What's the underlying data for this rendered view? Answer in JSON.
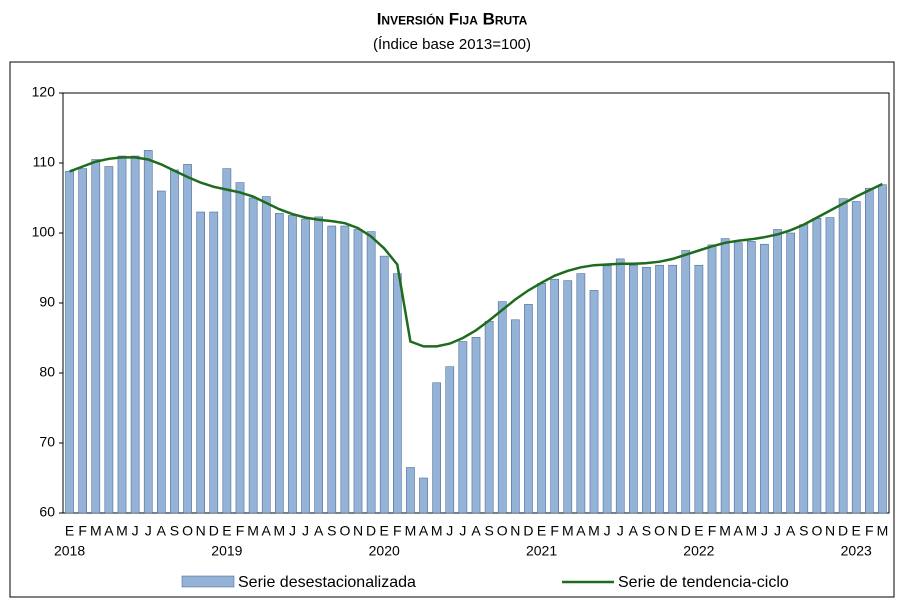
{
  "chart_data": {
    "type": "bar_line",
    "title": "Inversión Fija Bruta",
    "subtitle": "(Índice base 2013=100)",
    "categories": [
      "E",
      "F",
      "M",
      "A",
      "M",
      "J",
      "J",
      "A",
      "S",
      "O",
      "N",
      "D",
      "E",
      "F",
      "M",
      "A",
      "M",
      "J",
      "J",
      "A",
      "S",
      "O",
      "N",
      "D",
      "E",
      "F",
      "M",
      "A",
      "M",
      "J",
      "J",
      "A",
      "S",
      "O",
      "N",
      "D",
      "E",
      "F",
      "M",
      "A",
      "M",
      "J",
      "J",
      "A",
      "S",
      "O",
      "N",
      "D",
      "E",
      "F",
      "M",
      "A",
      "M",
      "J",
      "J",
      "A",
      "S",
      "O",
      "N",
      "D",
      "E",
      "F",
      "M"
    ],
    "years": [
      "2018",
      "2019",
      "2020",
      "2021",
      "2022",
      "2023"
    ],
    "series": [
      {
        "name": "Serie desestacionalizada",
        "type": "bar",
        "color": "#95b3d7",
        "values": [
          108.8,
          109.2,
          110.5,
          109.5,
          111.0,
          111.0,
          111.8,
          106.0,
          109.0,
          109.8,
          103.0,
          103.0,
          109.2,
          107.2,
          105.0,
          105.2,
          102.8,
          102.5,
          102.0,
          102.3,
          101.0,
          101.0,
          100.5,
          100.2,
          96.7,
          94.2,
          66.5,
          65.0,
          78.6,
          80.9,
          84.5,
          85.1,
          87.4,
          90.2,
          87.6,
          89.8,
          92.8,
          93.4,
          93.2,
          94.2,
          91.8,
          95.3,
          96.3,
          95.4,
          95.1,
          95.4,
          95.4,
          97.5,
          95.4,
          98.3,
          99.2,
          98.6,
          98.8,
          98.4,
          100.5,
          100.0,
          101.2,
          102.1,
          102.2,
          104.9,
          104.5,
          106.4,
          106.9
        ]
      },
      {
        "name": "Serie de tendencia-ciclo",
        "type": "line",
        "color": "#1e6b1e",
        "values": [
          108.8,
          109.5,
          110.2,
          110.6,
          110.8,
          110.8,
          110.5,
          109.8,
          108.9,
          108.0,
          107.2,
          106.6,
          106.2,
          105.8,
          105.2,
          104.3,
          103.4,
          102.7,
          102.2,
          101.9,
          101.7,
          101.4,
          100.7,
          99.5,
          97.8,
          95.5,
          84.5,
          83.8,
          83.8,
          84.2,
          85.0,
          86.1,
          87.5,
          89.0,
          90.5,
          91.8,
          92.9,
          93.9,
          94.6,
          95.1,
          95.4,
          95.5,
          95.6,
          95.6,
          95.7,
          95.9,
          96.3,
          96.9,
          97.5,
          98.1,
          98.6,
          98.9,
          99.1,
          99.4,
          99.8,
          100.4,
          101.2,
          102.2,
          103.2,
          104.2,
          105.2,
          106.1,
          107.0
        ]
      }
    ],
    "ylim": [
      60,
      120
    ],
    "yticks": [
      60,
      70,
      80,
      90,
      100,
      110,
      120
    ]
  }
}
